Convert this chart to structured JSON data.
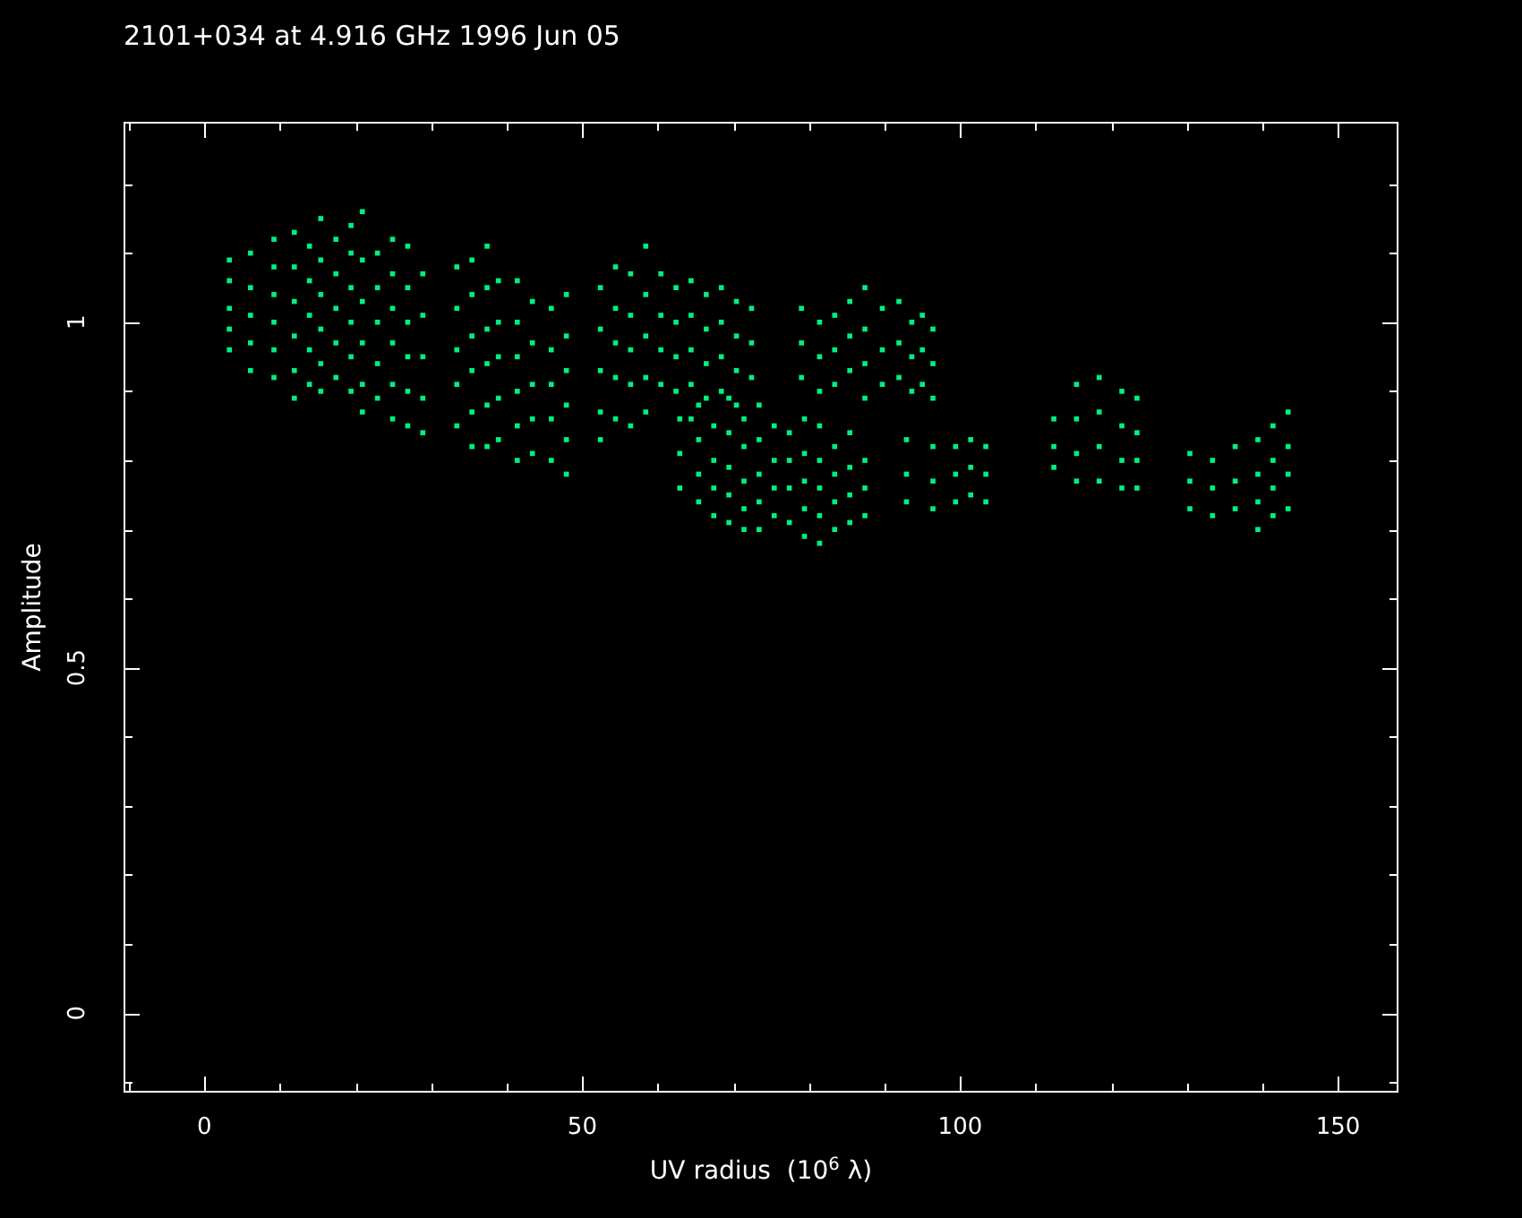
{
  "chart_data": {
    "type": "scatter",
    "title": "2101+034 at 4.916 GHz 1996 Jun 05",
    "xlabel": "UV radius  (10$^{6}$ λ)",
    "ylabel": "Amplitude",
    "color": "#00f080",
    "marker": "square",
    "xlim": [
      -10.7,
      158
    ],
    "xticks": [
      {
        "value": -10,
        "label": null
      },
      0,
      {
        "value": 10,
        "label": null
      },
      {
        "value": 20,
        "label": null
      },
      {
        "value": 30,
        "label": null
      },
      {
        "value": 40,
        "label": null
      },
      50,
      {
        "value": 60,
        "label": null
      },
      {
        "value": 70,
        "label": null
      },
      {
        "value": 80,
        "label": null
      },
      {
        "value": 90,
        "label": null
      },
      100,
      {
        "value": 110,
        "label": null
      },
      {
        "value": 120,
        "label": null
      },
      {
        "value": 130,
        "label": null
      },
      {
        "value": 140,
        "label": null
      },
      150
    ],
    "ylim": [
      -0.115,
      1.29
    ],
    "yticks": [
      {
        "value": -0.1,
        "label": null
      },
      0,
      {
        "value": 0.1,
        "label": null
      },
      {
        "value": 0.2,
        "label": null
      },
      {
        "value": 0.3,
        "label": null
      },
      {
        "value": 0.4,
        "label": null
      },
      0.5,
      {
        "value": 0.6,
        "label": null
      },
      {
        "value": 0.7,
        "label": null
      },
      {
        "value": 0.8,
        "label": null
      },
      {
        "value": 0.9,
        "label": null
      },
      1,
      {
        "value": 1.1,
        "label": null
      },
      {
        "value": 1.2,
        "label": null
      }
    ],
    "x": [
      3.3,
      3.3,
      3.3,
      3.3,
      3.3,
      6.1,
      6.1,
      6.1,
      6.1,
      6.1,
      9.2,
      9.2,
      9.2,
      9.2,
      9.2,
      9.2,
      11.9,
      11.9,
      11.9,
      11.9,
      11.9,
      11.9,
      13.9,
      13.9,
      13.9,
      13.9,
      13.9,
      15.4,
      15.4,
      15.4,
      15.4,
      15.4,
      15.4,
      17.4,
      17.4,
      17.4,
      17.4,
      17.4,
      19.4,
      19.4,
      19.4,
      19.4,
      19.4,
      19.4,
      20.9,
      20.9,
      20.9,
      20.9,
      20.9,
      20.9,
      22.9,
      22.9,
      22.9,
      22.9,
      22.9,
      24.9,
      24.9,
      24.9,
      24.9,
      24.9,
      24.9,
      26.9,
      26.9,
      26.9,
      26.9,
      26.9,
      26.9,
      28.9,
      28.9,
      28.9,
      28.9,
      28.9,
      33.4,
      33.4,
      33.4,
      33.4,
      33.4,
      35.4,
      35.4,
      35.4,
      35.4,
      35.4,
      35.4,
      37.4,
      37.4,
      37.4,
      37.4,
      37.4,
      37.4,
      38.9,
      38.9,
      38.9,
      38.9,
      38.9,
      41.4,
      41.4,
      41.4,
      41.4,
      41.4,
      41.4,
      43.4,
      43.4,
      43.4,
      43.4,
      43.4,
      45.9,
      45.9,
      45.9,
      45.9,
      45.9,
      47.9,
      47.9,
      47.9,
      47.9,
      47.9,
      47.9,
      52.4,
      52.4,
      52.4,
      52.4,
      52.4,
      54.4,
      54.4,
      54.4,
      54.4,
      54.4,
      56.4,
      56.4,
      56.4,
      56.4,
      56.4,
      58.4,
      58.4,
      58.4,
      58.4,
      58.4,
      60.4,
      60.4,
      60.4,
      60.4,
      62.4,
      62.4,
      62.4,
      62.4,
      64.4,
      64.4,
      64.4,
      64.4,
      64.4,
      66.4,
      66.4,
      66.4,
      66.4,
      68.4,
      68.4,
      68.4,
      68.4,
      70.4,
      70.4,
      70.4,
      70.4,
      72.4,
      72.4,
      72.4,
      62.9,
      62.9,
      62.9,
      65.4,
      65.4,
      65.4,
      65.4,
      67.4,
      67.4,
      67.4,
      67.4,
      69.4,
      69.4,
      69.4,
      69.4,
      69.4,
      71.4,
      71.4,
      71.4,
      71.4,
      71.4,
      73.4,
      73.4,
      73.4,
      73.4,
      73.4,
      75.4,
      75.4,
      75.4,
      75.4,
      77.4,
      77.4,
      77.4,
      77.4,
      79.4,
      79.4,
      79.4,
      79.4,
      79.4,
      81.4,
      81.4,
      81.4,
      81.4,
      81.4,
      83.4,
      83.4,
      83.4,
      83.4,
      85.4,
      85.4,
      85.4,
      85.4,
      87.4,
      87.4,
      87.4,
      79,
      79,
      79,
      81.4,
      81.4,
      81.4,
      83.4,
      83.4,
      83.4,
      85.4,
      85.4,
      85.4,
      87.4,
      87.4,
      87.4,
      87.4,
      89.7,
      89.7,
      89.7,
      91.9,
      91.9,
      91.9,
      93.6,
      93.6,
      93.6,
      95,
      95,
      95,
      96.4,
      96.4,
      96.4,
      92.9,
      92.9,
      92.9,
      96.4,
      96.4,
      96.4,
      99.4,
      99.4,
      99.4,
      101.4,
      101.4,
      101.4,
      103.4,
      103.4,
      103.4,
      112.4,
      112.4,
      112.4,
      115.4,
      115.4,
      115.4,
      115.4,
      118.4,
      118.4,
      118.4,
      118.4,
      121.4,
      121.4,
      121.4,
      121.4,
      123.4,
      123.4,
      123.4,
      123.4,
      130.4,
      130.4,
      130.4,
      133.4,
      133.4,
      133.4,
      136.4,
      136.4,
      136.4,
      139.4,
      139.4,
      139.4,
      139.4,
      141.4,
      141.4,
      141.4,
      141.4,
      143.4,
      143.4,
      143.4,
      143.4
    ],
    "values": [
      1.09,
      1.06,
      1.02,
      0.99,
      0.96,
      1.1,
      1.05,
      1.01,
      0.97,
      0.93,
      1.12,
      1.08,
      1.04,
      1.0,
      0.96,
      0.92,
      1.13,
      1.08,
      1.03,
      0.98,
      0.93,
      0.89,
      1.11,
      1.06,
      1.01,
      0.96,
      0.91,
      1.15,
      1.09,
      1.04,
      0.99,
      0.94,
      0.9,
      1.12,
      1.07,
      1.02,
      0.97,
      0.92,
      1.14,
      1.1,
      1.05,
      1.0,
      0.95,
      0.9,
      1.16,
      1.09,
      1.03,
      0.97,
      0.91,
      0.87,
      1.1,
      1.05,
      1.0,
      0.94,
      0.89,
      1.12,
      1.07,
      1.02,
      0.97,
      0.91,
      0.86,
      1.11,
      1.05,
      1.0,
      0.95,
      0.9,
      0.85,
      1.07,
      1.01,
      0.95,
      0.89,
      0.84,
      1.08,
      1.02,
      0.96,
      0.91,
      0.85,
      1.09,
      1.04,
      0.98,
      0.93,
      0.87,
      0.82,
      1.11,
      1.05,
      0.99,
      0.94,
      0.88,
      0.82,
      1.06,
      1.0,
      0.95,
      0.89,
      0.83,
      1.06,
      1.0,
      0.95,
      0.9,
      0.85,
      0.8,
      1.03,
      0.97,
      0.91,
      0.86,
      0.81,
      1.02,
      0.96,
      0.91,
      0.86,
      0.8,
      1.04,
      0.98,
      0.93,
      0.88,
      0.83,
      0.78,
      1.05,
      0.99,
      0.93,
      0.87,
      0.83,
      1.08,
      1.02,
      0.97,
      0.92,
      0.86,
      1.07,
      1.01,
      0.96,
      0.91,
      0.85,
      1.11,
      1.04,
      0.98,
      0.92,
      0.87,
      1.07,
      1.01,
      0.96,
      0.91,
      1.05,
      1.0,
      0.95,
      0.9,
      1.06,
      1.01,
      0.96,
      0.91,
      0.86,
      1.04,
      0.99,
      0.94,
      0.89,
      1.05,
      1.0,
      0.95,
      0.9,
      1.03,
      0.98,
      0.93,
      0.88,
      1.02,
      0.97,
      0.92,
      0.86,
      0.81,
      0.76,
      0.88,
      0.83,
      0.78,
      0.74,
      0.85,
      0.8,
      0.76,
      0.72,
      0.89,
      0.84,
      0.79,
      0.75,
      0.71,
      0.86,
      0.82,
      0.77,
      0.73,
      0.7,
      0.88,
      0.83,
      0.78,
      0.74,
      0.7,
      0.85,
      0.8,
      0.76,
      0.72,
      0.84,
      0.8,
      0.76,
      0.71,
      0.86,
      0.81,
      0.77,
      0.73,
      0.69,
      0.85,
      0.8,
      0.76,
      0.72,
      0.68,
      0.82,
      0.78,
      0.74,
      0.7,
      0.84,
      0.79,
      0.75,
      0.71,
      0.8,
      0.76,
      0.72,
      1.02,
      0.97,
      0.92,
      1.0,
      0.95,
      0.9,
      1.01,
      0.96,
      0.91,
      1.03,
      0.98,
      0.93,
      1.05,
      0.99,
      0.94,
      0.89,
      1.02,
      0.96,
      0.91,
      1.03,
      0.97,
      0.92,
      1.0,
      0.95,
      0.9,
      1.01,
      0.96,
      0.91,
      0.99,
      0.94,
      0.89,
      0.83,
      0.78,
      0.74,
      0.82,
      0.77,
      0.73,
      0.82,
      0.78,
      0.74,
      0.83,
      0.79,
      0.75,
      0.82,
      0.78,
      0.74,
      0.86,
      0.82,
      0.79,
      0.91,
      0.86,
      0.81,
      0.77,
      0.92,
      0.87,
      0.82,
      0.77,
      0.9,
      0.85,
      0.8,
      0.76,
      0.89,
      0.84,
      0.8,
      0.76,
      0.81,
      0.77,
      0.73,
      0.8,
      0.76,
      0.72,
      0.82,
      0.77,
      0.73,
      0.83,
      0.78,
      0.74,
      0.7,
      0.85,
      0.8,
      0.76,
      0.72,
      0.87,
      0.82,
      0.78,
      0.73
    ]
  }
}
